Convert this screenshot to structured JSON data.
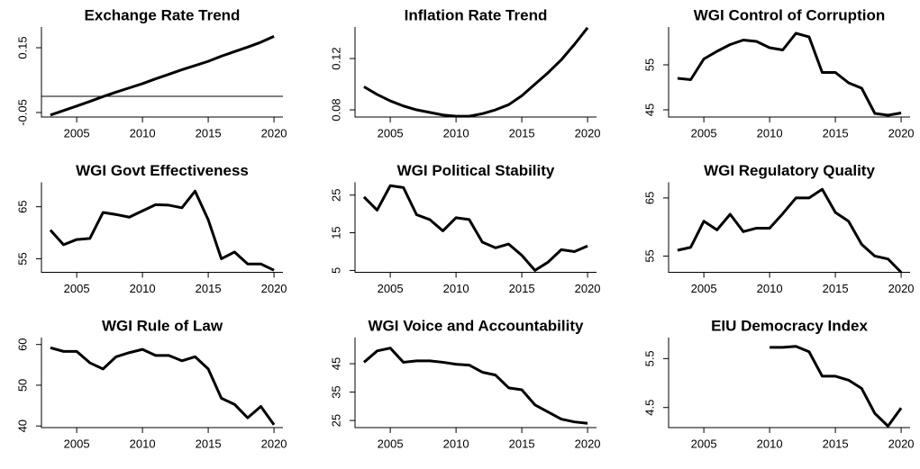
{
  "chart_data": [
    {
      "type": "line",
      "title": "Exchange Rate Trend",
      "color": "#000000",
      "x": [
        2003,
        2004,
        2005,
        2006,
        2007,
        2008,
        2009,
        2010,
        2011,
        2012,
        2013,
        2014,
        2015,
        2016,
        2017,
        2018,
        2019,
        2020
      ],
      "values": [
        -0.058,
        -0.044,
        -0.03,
        -0.016,
        -0.001,
        0.013,
        0.026,
        0.039,
        0.054,
        0.068,
        0.082,
        0.095,
        0.108,
        0.124,
        0.138,
        0.152,
        0.167,
        0.185
      ],
      "hline": 0,
      "xlim": [
        2002.32,
        2020.68
      ],
      "xticks": [
        2005,
        2010,
        2015,
        2020
      ],
      "ylim": [
        -0.064,
        0.214
      ],
      "yticks": [
        -0.05,
        0.15
      ]
    },
    {
      "type": "line",
      "title": "Inflation Rate Trend",
      "color": "#000000",
      "x": [
        2003,
        2004,
        2005,
        2006,
        2007,
        2008,
        2009,
        2010,
        2011,
        2012,
        2013,
        2014,
        2015,
        2016,
        2017,
        2018,
        2019,
        2020
      ],
      "values": [
        0.098,
        0.092,
        0.087,
        0.083,
        0.08,
        0.078,
        0.076,
        0.075,
        0.075,
        0.077,
        0.08,
        0.084,
        0.091,
        0.1,
        0.109,
        0.119,
        0.131,
        0.144
      ],
      "xlim": [
        2002.32,
        2020.68
      ],
      "xticks": [
        2005,
        2010,
        2015,
        2020
      ],
      "ylim": [
        0.0744,
        0.1446
      ],
      "yticks": [
        0.08,
        0.12
      ]
    },
    {
      "type": "line",
      "title": "WGI Control of Corruption",
      "color": "#000000",
      "x": [
        2003,
        2004,
        2005,
        2006,
        2007,
        2008,
        2009,
        2010,
        2011,
        2012,
        2013,
        2014,
        2015,
        2016,
        2017,
        2018,
        2019,
        2020
      ],
      "values": [
        52.0,
        51.7,
        56.3,
        58.0,
        59.5,
        60.5,
        60.2,
        58.8,
        58.3,
        62.0,
        61.2,
        53.3,
        53.3,
        51.0,
        49.8,
        44.2,
        43.8,
        44.3
      ],
      "xlim": [
        2002.32,
        2020.68
      ],
      "xticks": [
        2005,
        2010,
        2015,
        2020
      ],
      "ylim": [
        43.4,
        63.4
      ],
      "yticks": [
        45,
        55
      ]
    },
    {
      "type": "line",
      "title": "WGI Govt Effectiveness",
      "color": "#000000",
      "x": [
        2003,
        2004,
        2005,
        2006,
        2007,
        2008,
        2009,
        2010,
        2011,
        2012,
        2013,
        2014,
        2015,
        2016,
        2017,
        2018,
        2019,
        2020
      ],
      "values": [
        60.5,
        57.7,
        58.7,
        58.9,
        63.9,
        63.5,
        63.0,
        64.2,
        65.4,
        65.3,
        64.8,
        68.0,
        62.5,
        55.0,
        56.3,
        54.0,
        54.0,
        52.8
      ],
      "xlim": [
        2002.32,
        2020.68
      ],
      "xticks": [
        2005,
        2010,
        2015,
        2020
      ],
      "ylim": [
        52.4,
        69.7
      ],
      "yticks": [
        55,
        65
      ]
    },
    {
      "type": "line",
      "title": "WGI Political Stability",
      "color": "#000000",
      "x": [
        2003,
        2004,
        2005,
        2006,
        2007,
        2008,
        2009,
        2010,
        2011,
        2012,
        2013,
        2014,
        2015,
        2016,
        2017,
        2018,
        2019,
        2020
      ],
      "values": [
        24.5,
        21.0,
        27.5,
        27.0,
        19.8,
        18.5,
        15.5,
        19.0,
        18.5,
        12.5,
        11.0,
        12.0,
        9.0,
        5.0,
        7.2,
        10.5,
        10.0,
        11.5
      ],
      "xlim": [
        2002.32,
        2020.68
      ],
      "xticks": [
        2005,
        2010,
        2015,
        2020
      ],
      "ylim": [
        4.5,
        28.4
      ],
      "yticks": [
        5,
        15,
        25
      ]
    },
    {
      "type": "line",
      "title": "WGI Regulatory Quality",
      "color": "#000000",
      "x": [
        2003,
        2004,
        2005,
        2006,
        2007,
        2008,
        2009,
        2010,
        2011,
        2012,
        2013,
        2014,
        2015,
        2016,
        2017,
        2018,
        2019,
        2020
      ],
      "values": [
        56.0,
        56.5,
        61.0,
        59.5,
        62.2,
        59.2,
        59.8,
        59.8,
        62.3,
        65.0,
        65.0,
        66.5,
        62.5,
        61.0,
        57.0,
        55.0,
        54.5,
        52.2
      ],
      "xlim": [
        2002.32,
        2020.68
      ],
      "xticks": [
        2005,
        2010,
        2015,
        2020
      ],
      "ylim": [
        52.2,
        67.7
      ],
      "yticks": [
        55,
        65
      ]
    },
    {
      "type": "line",
      "title": "WGI Rule of Law",
      "color": "#000000",
      "x": [
        2003,
        2004,
        2005,
        2006,
        2007,
        2008,
        2009,
        2010,
        2011,
        2012,
        2013,
        2014,
        2015,
        2016,
        2017,
        2018,
        2019,
        2020
      ],
      "values": [
        59.2,
        58.3,
        58.3,
        55.5,
        54.0,
        57.0,
        58.0,
        58.8,
        57.3,
        57.3,
        56.0,
        57.0,
        54.0,
        46.8,
        45.3,
        42.0,
        44.8,
        40.3
      ],
      "xlim": [
        2002.32,
        2020.68
      ],
      "xticks": [
        2005,
        2010,
        2015,
        2020
      ],
      "ylim": [
        39.6,
        61.7
      ],
      "yticks": [
        40,
        50,
        60
      ]
    },
    {
      "type": "line",
      "title": "WGI Voice and Accountability",
      "color": "#000000",
      "x": [
        2003,
        2004,
        2005,
        2006,
        2007,
        2008,
        2009,
        2010,
        2011,
        2012,
        2013,
        2014,
        2015,
        2016,
        2017,
        2018,
        2019,
        2020
      ],
      "values": [
        45.5,
        49.5,
        50.5,
        45.5,
        46.0,
        46.0,
        45.5,
        44.8,
        44.5,
        42.0,
        41.0,
        36.5,
        35.8,
        30.5,
        28.0,
        25.5,
        24.5,
        24.0
      ],
      "xlim": [
        2002.32,
        2020.68
      ],
      "xticks": [
        2005,
        2010,
        2015,
        2020
      ],
      "ylim": [
        22.5,
        54.2
      ],
      "yticks": [
        25,
        35,
        45
      ]
    },
    {
      "type": "line",
      "title": "EIU Democracy Index",
      "color": "#000000",
      "x": [
        2003,
        2004,
        2005,
        2006,
        2007,
        2008,
        2009,
        2010,
        2011,
        2012,
        2013,
        2014,
        2015,
        2016,
        2017,
        2018,
        2019,
        2020
      ],
      "values": [
        null,
        null,
        null,
        null,
        null,
        null,
        null,
        5.73,
        5.73,
        5.75,
        5.64,
        5.14,
        5.14,
        5.06,
        4.89,
        4.38,
        4.12,
        4.49
      ],
      "xlim": [
        2002.32,
        2020.68
      ],
      "xticks": [
        2005,
        2010,
        2015,
        2020
      ],
      "ylim": [
        4.09,
        5.93
      ],
      "yticks": [
        4.5,
        5.5
      ]
    }
  ]
}
